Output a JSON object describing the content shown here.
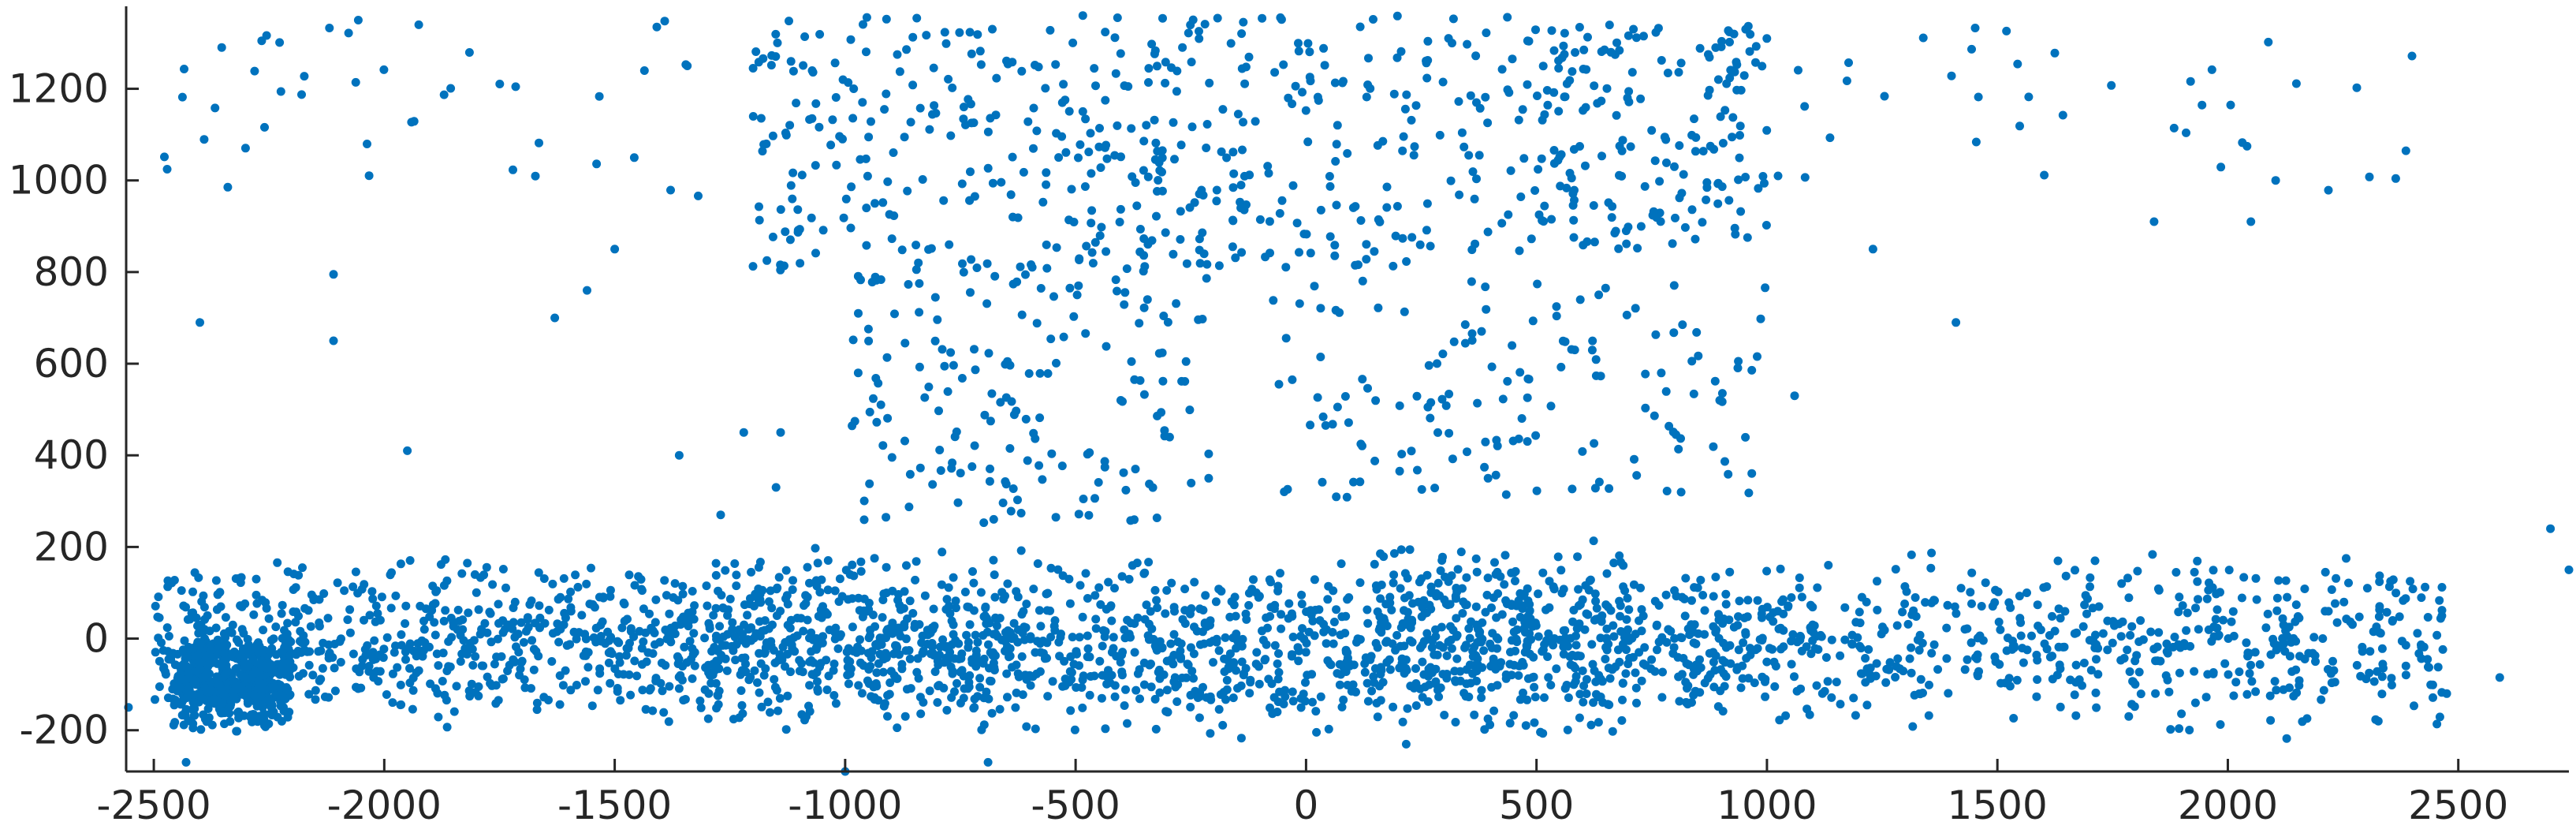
{
  "chart_data": {
    "type": "scatter",
    "title": "",
    "xlabel": "",
    "ylabel": "",
    "xlim": [
      -2560,
      2740
    ],
    "ylim": [
      -290,
      1380
    ],
    "xticks": [
      -2500,
      -2000,
      -1500,
      -1000,
      -500,
      0,
      500,
      1000,
      1500,
      2000,
      2500
    ],
    "yticks": [
      -200,
      0,
      200,
      400,
      600,
      800,
      1000,
      1200
    ],
    "grid": false,
    "legend": "none",
    "color": "#0072BD",
    "clusters": [
      {
        "x": [
          -2460,
          -2200
        ],
        "y": [
          -220,
          30
        ],
        "n": 420
      },
      {
        "x": [
          -2500,
          -1300
        ],
        "y": [
          -220,
          200
        ],
        "n": 650
      },
      {
        "x": [
          -1300,
          -600
        ],
        "y": [
          -240,
          220
        ],
        "n": 560
      },
      {
        "x": [
          -600,
          150
        ],
        "y": [
          -240,
          200
        ],
        "n": 420
      },
      {
        "x": [
          150,
          700
        ],
        "y": [
          -250,
          250
        ],
        "n": 460
      },
      {
        "x": [
          700,
          1300
        ],
        "y": [
          -230,
          190
        ],
        "n": 270
      },
      {
        "x": [
          1300,
          2480
        ],
        "y": [
          -230,
          220
        ],
        "n": 420
      },
      {
        "x": [
          -1200,
          -150
        ],
        "y": [
          800,
          1360
        ],
        "n": 320
      },
      {
        "x": [
          -150,
          500
        ],
        "y": [
          800,
          1360
        ],
        "n": 160
      },
      {
        "x": [
          500,
          1000
        ],
        "y": [
          850,
          1340
        ],
        "n": 190
      },
      {
        "x": [
          -1000,
          -200
        ],
        "y": [
          250,
          800
        ],
        "n": 170
      },
      {
        "x": [
          -100,
          1000
        ],
        "y": [
          300,
          800
        ],
        "n": 150
      },
      {
        "x": [
          -2490,
          -1300
        ],
        "y": [
          950,
          1350
        ],
        "n": 45
      },
      {
        "x": [
          1000,
          2400
        ],
        "y": [
          950,
          1350
        ],
        "n": 40
      }
    ],
    "outliers": [
      [
        -2400,
        690
      ],
      [
        -2110,
        795
      ],
      [
        -2110,
        650
      ],
      [
        -1950,
        410
      ],
      [
        -1630,
        700
      ],
      [
        -1560,
        760
      ],
      [
        -1360,
        400
      ],
      [
        -1270,
        270
      ],
      [
        -1220,
        450
      ],
      [
        -1140,
        450
      ],
      [
        -1150,
        330
      ],
      [
        1060,
        530
      ],
      [
        1230,
        850
      ],
      [
        1410,
        690
      ],
      [
        2050,
        910
      ],
      [
        1840,
        910
      ],
      [
        -1500,
        850
      ],
      [
        2700,
        240
      ],
      [
        2590,
        -85
      ],
      [
        2740,
        150
      ],
      [
        -2555,
        -150
      ],
      [
        -2430,
        -270
      ],
      [
        -690,
        -270
      ],
      [
        -1000,
        -290
      ]
    ]
  }
}
